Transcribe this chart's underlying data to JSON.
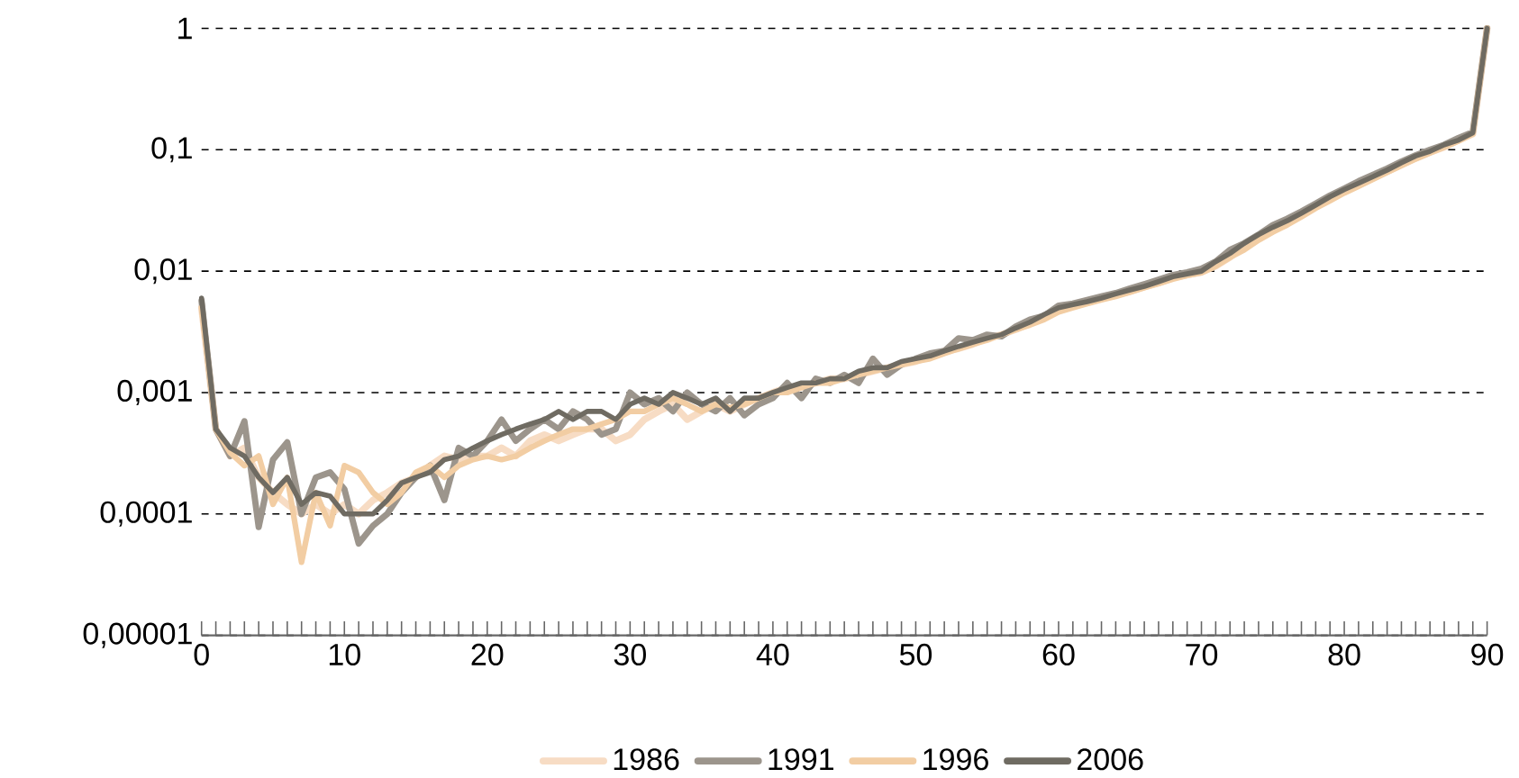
{
  "chart_data": {
    "type": "line",
    "log": "y",
    "grid": "y",
    "legend": "bottom",
    "x": [
      0,
      1,
      2,
      3,
      4,
      5,
      6,
      7,
      8,
      9,
      10,
      11,
      12,
      13,
      14,
      15,
      16,
      17,
      18,
      19,
      20,
      21,
      22,
      23,
      24,
      25,
      26,
      27,
      28,
      29,
      30,
      31,
      32,
      33,
      34,
      35,
      36,
      37,
      38,
      39,
      40,
      41,
      42,
      43,
      44,
      45,
      46,
      47,
      48,
      49,
      50,
      51,
      52,
      53,
      54,
      55,
      56,
      57,
      58,
      59,
      60,
      61,
      62,
      63,
      64,
      65,
      66,
      67,
      68,
      69,
      70,
      71,
      72,
      73,
      74,
      75,
      76,
      77,
      78,
      79,
      80,
      81,
      82,
      83,
      84,
      85,
      86,
      87,
      88,
      89,
      90
    ],
    "xlim": [
      0,
      90
    ],
    "xticks": [
      0,
      10,
      20,
      30,
      40,
      50,
      60,
      70,
      80,
      90
    ],
    "ylim": [
      1e-05,
      1
    ],
    "yticks": [
      {
        "value": 1e-05,
        "label": "0,00001"
      },
      {
        "value": 0.0001,
        "label": "0,0001"
      },
      {
        "value": 0.001,
        "label": "0,001"
      },
      {
        "value": 0.01,
        "label": "0,01"
      },
      {
        "value": 0.1,
        "label": "0,1"
      },
      {
        "value": 1,
        "label": "1"
      }
    ],
    "series": [
      {
        "name": "1986",
        "color": "#f7dcc4",
        "values": [
          0.005,
          0.0005,
          0.0003,
          0.00035,
          0.0002,
          0.00015,
          0.00012,
          0.0001,
          0.00012,
          0.0001,
          0.00012,
          0.0001,
          0.00013,
          0.00015,
          0.00018,
          0.0002,
          0.00025,
          0.0003,
          0.00028,
          0.0003,
          0.0003,
          0.00035,
          0.0003,
          0.0004,
          0.00045,
          0.0004,
          0.00045,
          0.0005,
          0.0005,
          0.0004,
          0.00045,
          0.0006,
          0.0007,
          0.0008,
          0.0006,
          0.0007,
          0.0008,
          0.0007,
          0.0008,
          0.0009,
          0.001,
          0.0011,
          0.0011,
          0.0012,
          0.0013,
          0.0013,
          0.0014,
          0.0015,
          0.0016,
          0.0017,
          0.0018,
          0.002,
          0.0022,
          0.0023,
          0.0025,
          0.0028,
          0.003,
          0.0033,
          0.0037,
          0.0042,
          0.0048,
          0.0052,
          0.0055,
          0.006,
          0.0064,
          0.0068,
          0.0074,
          0.008,
          0.0088,
          0.0093,
          0.0098,
          0.011,
          0.013,
          0.016,
          0.019,
          0.022,
          0.025,
          0.029,
          0.034,
          0.04,
          0.045,
          0.051,
          0.058,
          0.066,
          0.075,
          0.085,
          0.095,
          0.105,
          0.12,
          0.135,
          1
        ]
      },
      {
        "name": "1991",
        "color": "#9c958c",
        "values": [
          0.0057,
          0.0005,
          0.0003,
          0.00058,
          7.8e-05,
          0.00028,
          0.00039,
          0.0001,
          0.0002,
          0.00022,
          0.00016,
          5.7e-05,
          8e-05,
          0.0001,
          0.00015,
          0.0002,
          0.00025,
          0.00013,
          0.00035,
          0.0003,
          0.0004,
          0.0006,
          0.0004,
          0.0005,
          0.0006,
          0.0005,
          0.0007,
          0.0006,
          0.00045,
          0.0005,
          0.001,
          0.0008,
          0.0009,
          0.0007,
          0.001,
          0.0008,
          0.0007,
          0.0009,
          0.00065,
          0.0008,
          0.0009,
          0.0012,
          0.0009,
          0.0013,
          0.0012,
          0.0014,
          0.0012,
          0.0019,
          0.0014,
          0.0017,
          0.0019,
          0.0021,
          0.0022,
          0.0028,
          0.0027,
          0.003,
          0.0029,
          0.0035,
          0.004,
          0.0043,
          0.0052,
          0.0054,
          0.0058,
          0.0062,
          0.0066,
          0.0072,
          0.0078,
          0.0085,
          0.0093,
          0.0098,
          0.0105,
          0.012,
          0.015,
          0.017,
          0.02,
          0.024,
          0.027,
          0.031,
          0.036,
          0.042,
          0.048,
          0.055,
          0.062,
          0.07,
          0.08,
          0.09,
          0.1,
          0.11,
          0.125,
          0.14,
          1
        ]
      },
      {
        "name": "1996",
        "color": "#f2cda3",
        "values": [
          0.005,
          0.0005,
          0.00032,
          0.00025,
          0.0003,
          0.00012,
          0.0002,
          4e-05,
          0.00015,
          8e-05,
          0.00025,
          0.00022,
          0.00015,
          0.00012,
          0.00015,
          0.00022,
          0.00025,
          0.0002,
          0.00025,
          0.00028,
          0.0003,
          0.00028,
          0.0003,
          0.00035,
          0.0004,
          0.00045,
          0.0005,
          0.0005,
          0.00055,
          0.0006,
          0.0007,
          0.0007,
          0.0008,
          0.0009,
          0.0008,
          0.0007,
          0.0008,
          0.00075,
          0.0008,
          0.0009,
          0.001,
          0.001,
          0.0011,
          0.0012,
          0.0012,
          0.0013,
          0.0014,
          0.0015,
          0.0016,
          0.0017,
          0.0018,
          0.0019,
          0.0021,
          0.0023,
          0.0025,
          0.0027,
          0.003,
          0.0033,
          0.0036,
          0.004,
          0.0046,
          0.005,
          0.0054,
          0.0058,
          0.0062,
          0.0067,
          0.0073,
          0.0079,
          0.0086,
          0.0092,
          0.0097,
          0.011,
          0.013,
          0.015,
          0.018,
          0.021,
          0.024,
          0.028,
          0.033,
          0.038,
          0.044,
          0.05,
          0.057,
          0.065,
          0.074,
          0.084,
          0.094,
          0.105,
          0.118,
          0.135,
          1
        ]
      },
      {
        "name": "2006",
        "color": "#6f6b62",
        "values": [
          0.006,
          0.0005,
          0.00035,
          0.0003,
          0.0002,
          0.00015,
          0.0002,
          0.00012,
          0.00015,
          0.00014,
          0.0001,
          0.0001,
          0.0001,
          0.00013,
          0.00018,
          0.0002,
          0.00022,
          0.00028,
          0.0003,
          0.00035,
          0.0004,
          0.00045,
          0.0005,
          0.00055,
          0.0006,
          0.0007,
          0.0006,
          0.0007,
          0.0007,
          0.0006,
          0.0008,
          0.0009,
          0.0008,
          0.001,
          0.0009,
          0.0008,
          0.0009,
          0.0007,
          0.0009,
          0.0009,
          0.001,
          0.0011,
          0.0012,
          0.0012,
          0.0013,
          0.0013,
          0.0015,
          0.0016,
          0.0016,
          0.0018,
          0.0019,
          0.002,
          0.0022,
          0.0024,
          0.0026,
          0.0028,
          0.003,
          0.0034,
          0.0038,
          0.0044,
          0.005,
          0.0053,
          0.0056,
          0.006,
          0.0065,
          0.007,
          0.0075,
          0.0082,
          0.009,
          0.0095,
          0.01,
          0.012,
          0.014,
          0.017,
          0.02,
          0.023,
          0.026,
          0.03,
          0.035,
          0.041,
          0.047,
          0.053,
          0.06,
          0.068,
          0.078,
          0.089,
          0.097,
          0.11,
          0.12,
          0.138,
          1
        ]
      }
    ]
  }
}
